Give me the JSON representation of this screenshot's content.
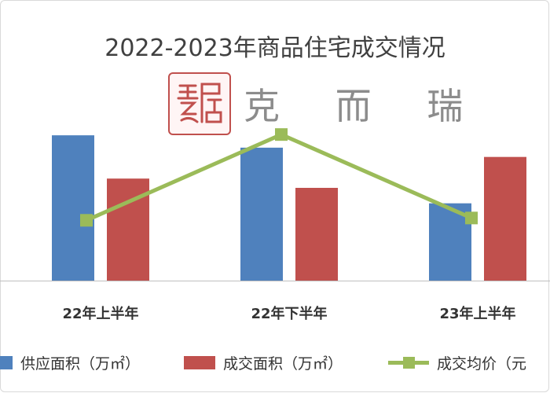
{
  "chart_data": {
    "type": "bar",
    "title": "2022-2023年商品住宅成交情况",
    "categories": [
      "22年上半年",
      "22年下半年",
      "23年上半年"
    ],
    "series": [
      {
        "name": "供应面积（万㎡）",
        "type": "bar",
        "axis": "left",
        "color": "#4f81bd",
        "values": [
          47,
          43,
          25
        ]
      },
      {
        "name": "成交面积（万㎡）",
        "type": "bar",
        "axis": "left",
        "color": "#c0504d",
        "values": [
          33,
          30,
          40
        ]
      },
      {
        "name": "成交均价（元",
        "type": "line",
        "axis": "right",
        "color": "#9bbb59",
        "values": [
          26,
          63,
          27
        ]
      }
    ],
    "ylim": [
      0,
      60
    ],
    "y2lim": [
      0,
      80
    ],
    "grid": false,
    "legend": "bottom",
    "axis_ticks_visible": false
  },
  "watermark": {
    "seal_alt": "易居",
    "text": "克 而 瑞"
  }
}
